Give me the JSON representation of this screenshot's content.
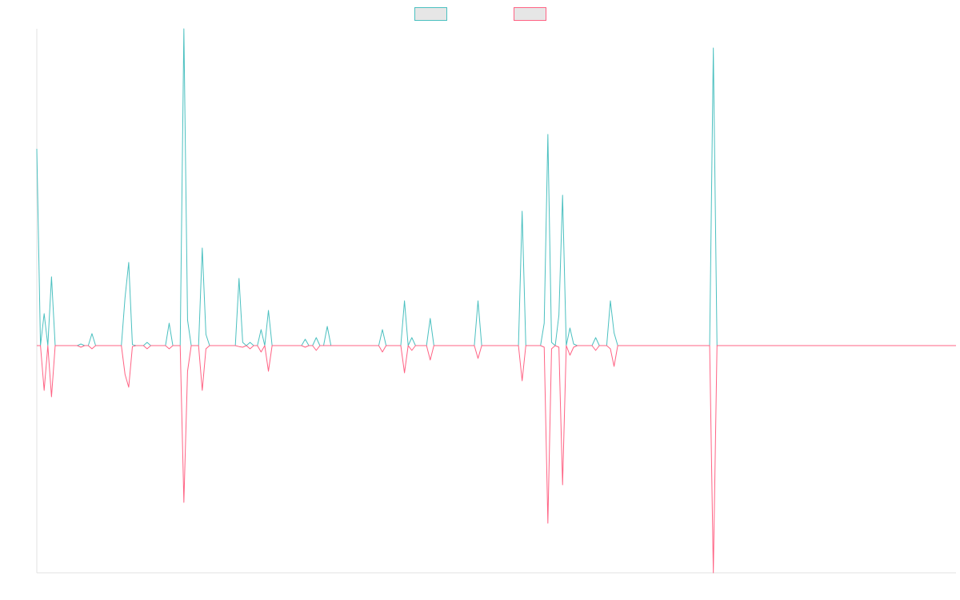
{
  "chart_data": {
    "type": "line",
    "legend": "top",
    "grid": false,
    "ylim": [
      -71,
      99
    ],
    "legend_fill": "#e6e6e6",
    "series": [
      {
        "color": "#4bc0c0",
        "values": [
          61.5,
          0,
          10,
          0,
          21.5,
          0,
          0,
          0,
          0,
          0,
          0,
          0,
          0.5,
          0,
          0,
          3.75,
          0,
          0,
          0,
          0,
          0,
          0,
          0,
          0,
          15,
          26,
          0.3,
          0,
          0,
          0,
          1,
          0,
          0,
          0,
          0,
          0,
          7,
          0,
          0,
          0,
          99,
          8,
          0,
          0,
          0,
          30.5,
          3.5,
          0,
          0,
          0,
          0,
          0,
          0,
          0,
          0,
          21,
          1,
          0,
          1,
          0,
          0,
          5,
          0,
          11,
          0,
          0,
          0,
          0,
          0,
          0,
          0,
          0,
          0,
          2,
          0,
          0,
          2.5,
          0,
          0,
          6,
          0,
          0,
          0,
          0,
          0,
          0,
          0,
          0,
          0,
          0,
          0,
          0,
          0,
          0,
          5,
          0,
          0,
          0,
          0,
          0,
          14,
          0,
          2.5,
          0,
          0,
          0,
          0,
          8.5,
          0,
          0,
          0,
          0,
          0,
          0,
          0,
          0,
          0,
          0,
          0,
          0,
          14,
          0,
          0,
          0,
          0,
          0,
          0,
          0,
          0,
          0,
          0,
          0,
          42,
          0,
          0,
          0,
          0,
          0,
          7,
          66,
          1,
          0,
          9.5,
          47,
          0,
          5.5,
          0.5,
          0,
          0,
          0,
          0,
          0,
          2.5,
          0,
          0,
          0,
          14,
          4,
          0,
          0,
          0,
          0,
          0,
          0,
          0,
          0,
          0,
          0,
          0,
          0,
          0,
          0,
          0,
          0,
          0,
          0,
          0,
          0,
          0,
          0,
          0,
          0,
          0,
          0,
          93,
          0,
          0,
          0,
          0,
          0,
          0,
          0,
          0,
          0,
          0,
          0,
          0,
          0,
          0,
          0,
          0,
          0,
          0,
          0,
          0,
          0,
          0,
          0,
          0,
          0,
          0,
          0,
          0,
          0,
          0,
          0,
          0,
          0,
          0,
          0,
          0,
          0,
          0,
          0,
          0,
          0,
          0,
          0,
          0,
          0,
          0,
          0,
          0,
          0,
          0,
          0,
          0,
          0,
          0,
          0,
          0,
          0,
          0,
          0,
          0,
          0,
          0,
          0,
          0,
          0,
          0
        ]
      },
      {
        "color": "#ff6384",
        "values": [
          0,
          0,
          -14,
          0,
          -16,
          0,
          0,
          0,
          0,
          0,
          0,
          0,
          -0.5,
          0,
          0,
          -1,
          0,
          0,
          0,
          0,
          0,
          0,
          0,
          0,
          -9,
          -13,
          -0.3,
          0,
          0,
          0,
          -1,
          0,
          0,
          0,
          0,
          0,
          -1,
          0,
          0,
          0,
          -49,
          -8,
          0,
          0,
          0,
          -14,
          -1,
          0,
          0,
          0,
          0,
          0,
          0,
          0,
          0,
          -0.3,
          -0.5,
          0,
          -1,
          0,
          0,
          -2,
          0,
          -8,
          0,
          0,
          0,
          0,
          0,
          0,
          0,
          0,
          0,
          -0.5,
          0,
          0,
          -1.5,
          0,
          0,
          0,
          0,
          0,
          0,
          0,
          0,
          0,
          0,
          0,
          0,
          0,
          0,
          0,
          0,
          0,
          -2,
          0,
          0,
          0,
          0,
          0,
          -8.5,
          0,
          -1.5,
          0,
          0,
          0,
          0,
          -4.5,
          0,
          0,
          0,
          0,
          0,
          0,
          0,
          0,
          0,
          0,
          0,
          0,
          -4,
          0,
          0,
          0,
          0,
          0,
          0,
          0,
          0,
          0,
          0,
          0,
          -11,
          0,
          0,
          0,
          0,
          0,
          -0.5,
          -55.5,
          -1,
          0,
          -0.5,
          -43.5,
          0,
          -3,
          -0.5,
          0,
          0,
          0,
          0,
          0,
          -1.5,
          0,
          0,
          0,
          -1,
          -6.5,
          0,
          0,
          0,
          0,
          0,
          0,
          0,
          0,
          0,
          0,
          0,
          0,
          0,
          0,
          0,
          0,
          0,
          0,
          0,
          0,
          0,
          0,
          0,
          0,
          0,
          0,
          -71,
          0,
          0,
          0,
          0,
          0,
          0,
          0,
          0,
          0,
          0,
          0,
          0,
          0,
          0,
          0,
          0,
          0,
          0,
          0,
          0,
          0,
          0,
          0,
          0,
          0,
          0,
          0,
          0,
          0,
          0,
          0,
          0,
          0,
          0,
          0,
          0,
          0,
          0,
          0,
          0,
          0,
          0,
          0,
          0,
          0,
          0,
          0,
          0,
          0,
          0,
          0,
          0,
          0,
          0,
          0,
          0,
          0,
          0,
          0,
          0,
          0,
          0,
          0,
          0,
          0,
          0
        ]
      }
    ]
  }
}
